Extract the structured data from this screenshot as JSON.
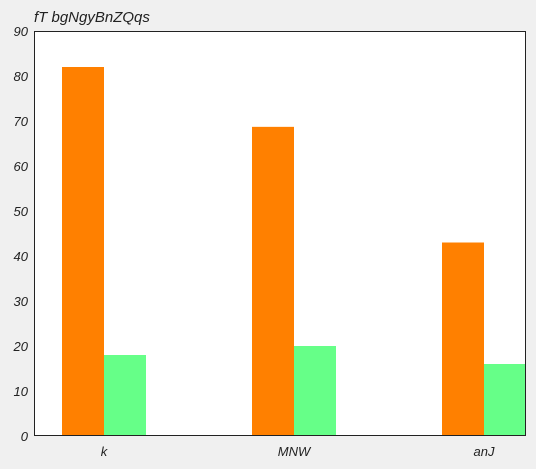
{
  "chart_data": {
    "type": "bar",
    "title": "fT bgNgyBnZQqs",
    "xlabel": "",
    "ylabel": "",
    "categories": [
      "k",
      "MNW",
      "anJ"
    ],
    "series": [
      {
        "values": [
          82,
          68.7,
          43
        ],
        "color": "#ff8000"
      },
      {
        "values": [
          18,
          20,
          16
        ],
        "color": "#66ff88"
      }
    ],
    "ylim": [
      0,
      90
    ],
    "yticks": [
      0,
      10,
      20,
      30,
      40,
      50,
      60,
      70,
      80,
      90
    ],
    "grid": false,
    "legend": "none",
    "background": "#f0f0f0",
    "plot_background": "#ffffff"
  }
}
